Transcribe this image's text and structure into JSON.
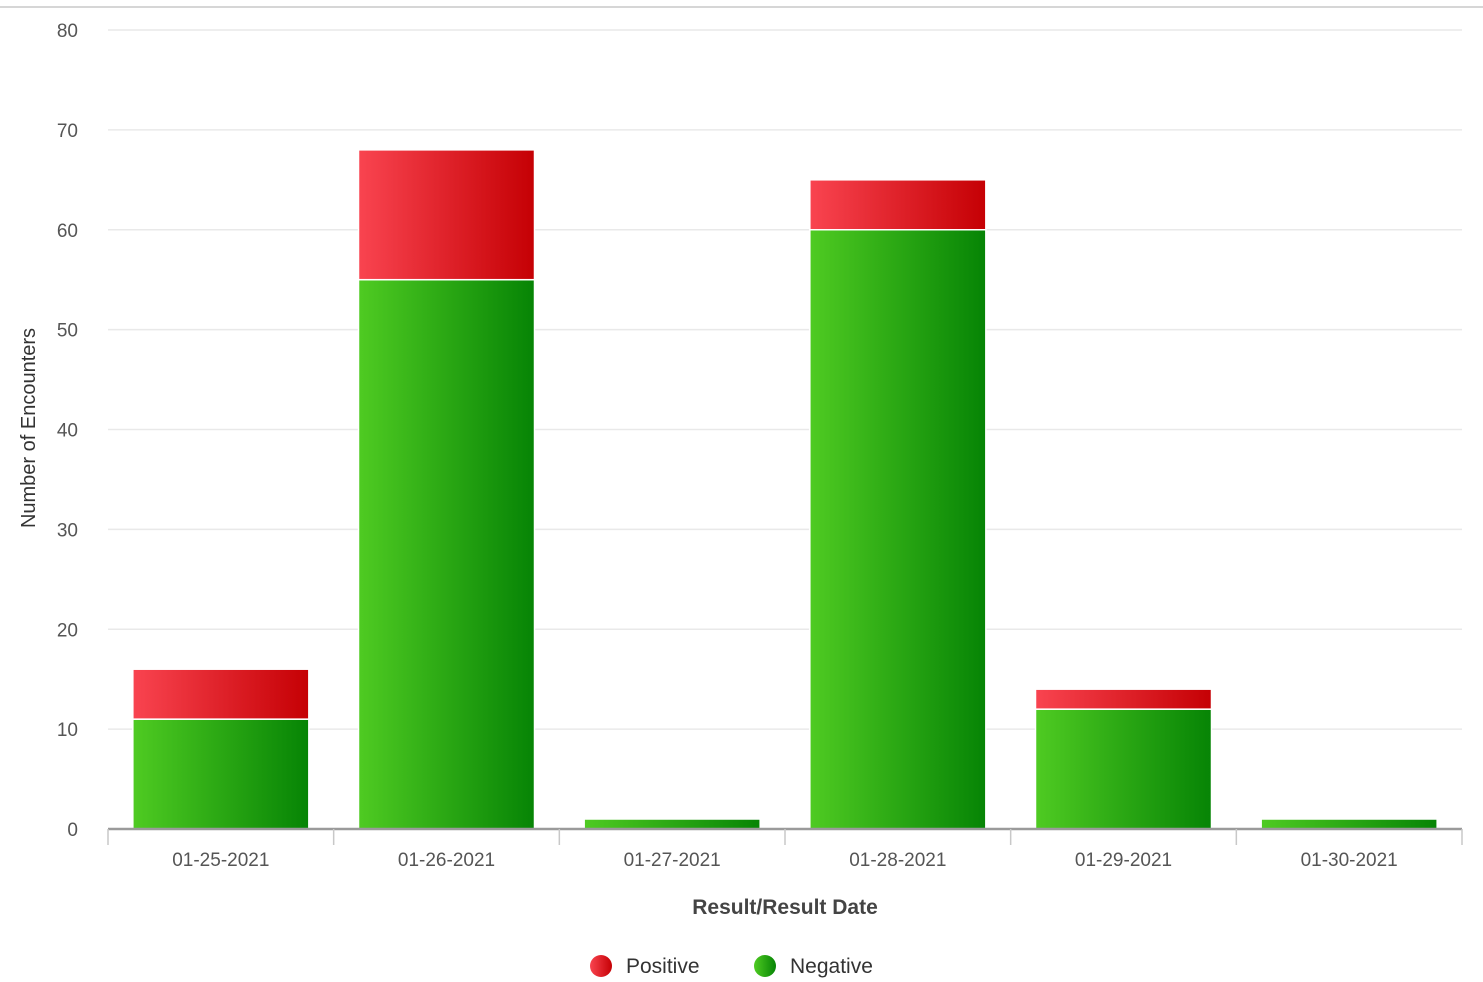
{
  "chart_data": {
    "type": "bar",
    "stacked": true,
    "categories": [
      "01-25-2021",
      "01-26-2021",
      "01-27-2021",
      "01-28-2021",
      "01-29-2021",
      "01-30-2021"
    ],
    "series": [
      {
        "name": "Negative",
        "values": [
          11,
          55,
          1,
          60,
          12,
          1
        ],
        "color": "#2db81a"
      },
      {
        "name": "Positive",
        "values": [
          5,
          13,
          0,
          5,
          2,
          0
        ],
        "color": "#e8222c"
      }
    ],
    "title": "",
    "xlabel": "Result/Result Date",
    "ylabel": "Number of Encounters",
    "ylim": [
      0,
      80
    ],
    "yticks": [
      "0",
      "10",
      "20",
      "30",
      "40",
      "50",
      "60",
      "70",
      "80"
    ],
    "grid": true,
    "legend_position": "bottom-center",
    "legend": [
      {
        "name": "Positive",
        "color": "#e8222c"
      },
      {
        "name": "Negative",
        "color": "#2db81a"
      }
    ]
  }
}
